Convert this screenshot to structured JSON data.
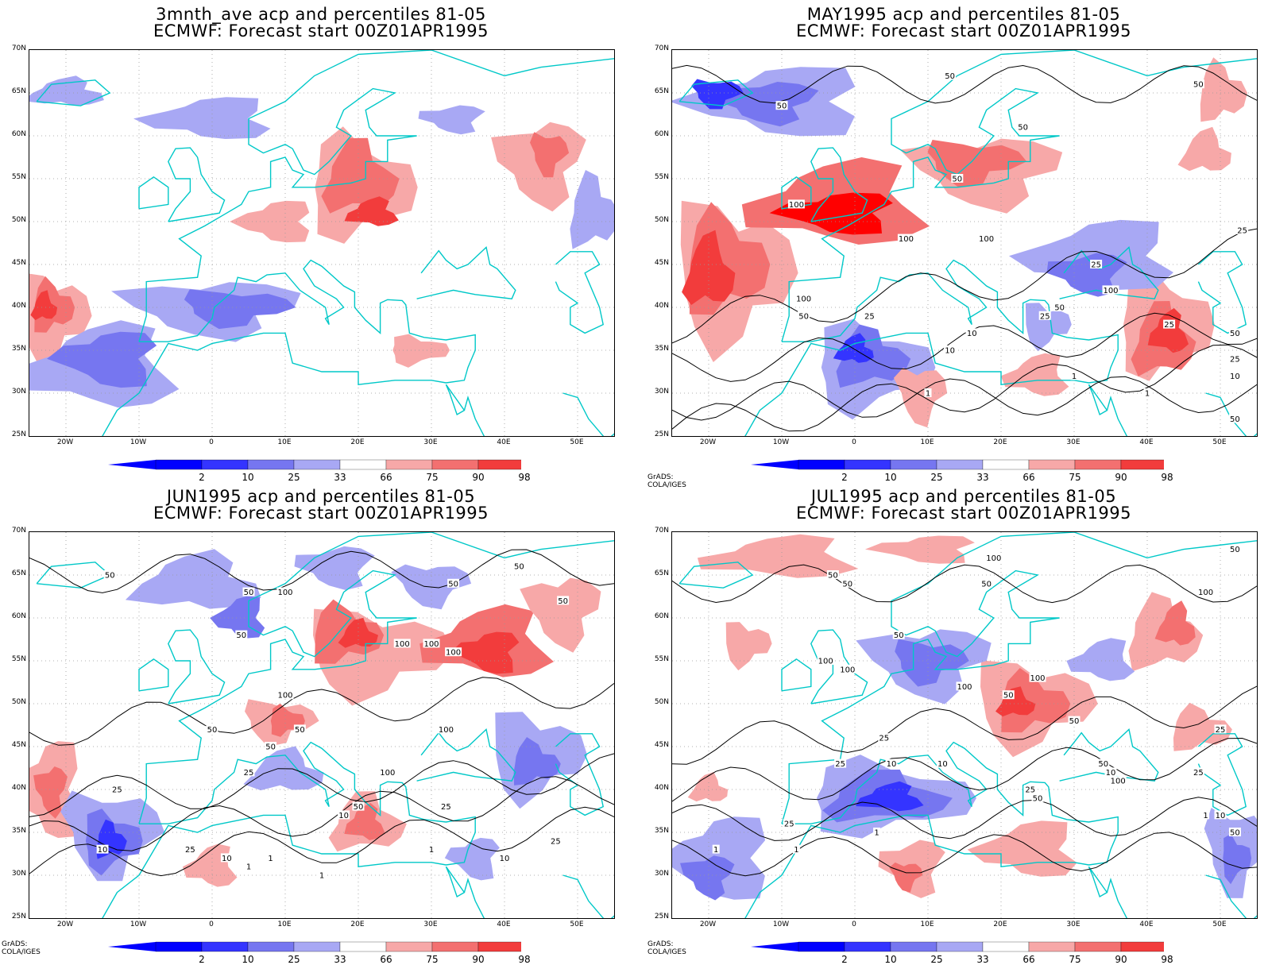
{
  "colors": {
    "blue_2": "#0000ff",
    "blue_10": "#3434ff",
    "blue_25": "#7676f0",
    "blue_33": "#a8a8f4",
    "red_66": "#f7a8a8",
    "red_75": "#f37070",
    "red_90": "#f23c3c",
    "red_98": "#ff0000",
    "coast": "#00c8c8",
    "contour": "#000000"
  },
  "colorbar_labels": [
    "2",
    "10",
    "25",
    "33",
    "66",
    "75",
    "90",
    "98"
  ],
  "lat_labels": [
    "70N",
    "65N",
    "60N",
    "55N",
    "50N",
    "45N",
    "40N",
    "35N",
    "30N",
    "25N"
  ],
  "lon_labels": [
    "20W",
    "10W",
    "0",
    "10E",
    "20E",
    "30E",
    "40E",
    "50E"
  ],
  "credit": "GrADS: COLA/IGES",
  "panels": [
    {
      "title1": "3mnth_ave acp and percentiles 81-05",
      "title2": "ECMWF: Forecast start 00Z01APR1995",
      "contour_labels": []
    },
    {
      "title1": "MAY1995 acp and percentiles 81-05",
      "title2": "ECMWF: Forecast start 00Z01APR1995",
      "contour_labels": [
        "50",
        "50",
        "50",
        "50",
        "100",
        "50",
        "100",
        "100",
        "100",
        "25",
        "50",
        "25",
        "100",
        "50",
        "25",
        "25",
        "10",
        "10",
        "1",
        "50",
        "25",
        "10",
        "1",
        "1",
        "50",
        "25"
      ]
    },
    {
      "title1": "JUN1995 acp and percentiles 81-05",
      "title2": "ECMWF: Forecast start 00Z01APR1995",
      "contour_labels": [
        "50",
        "50",
        "100",
        "50",
        "50",
        "50",
        "100",
        "100",
        "100",
        "50",
        "100",
        "100",
        "50",
        "50",
        "50",
        "25",
        "25",
        "100",
        "25",
        "50",
        "10",
        "10",
        "10",
        "25",
        "10",
        "1",
        "1",
        "1",
        "1",
        "25"
      ]
    },
    {
      "title1": "JUL1995 acp and percentiles 81-05",
      "title2": "ECMWF: Forecast start 00Z01APR1995",
      "contour_labels": [
        "50",
        "50",
        "100",
        "50",
        "50",
        "50",
        "100",
        "100",
        "100",
        "100",
        "50",
        "50",
        "100",
        "25",
        "25",
        "10",
        "10",
        "50",
        "25",
        "10",
        "50",
        "100",
        "25",
        "1",
        "1",
        "1",
        "1",
        "25",
        "10",
        "50",
        "25"
      ]
    }
  ]
}
